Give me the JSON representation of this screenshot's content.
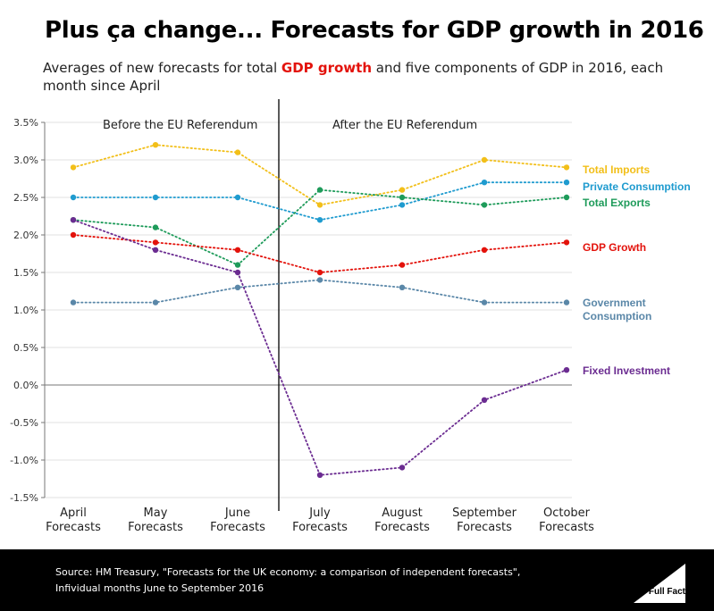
{
  "header": {
    "title": "Plus ça change... Forecasts for GDP growth in 2016",
    "subtitle_pre": "Averages of new forecasts for total ",
    "subtitle_highlight": "GDP growth",
    "subtitle_post": " and five components of GDP in 2016, each month since April"
  },
  "footer": {
    "source_line1": "Source: HM Treasury, \"Forecasts for the UK economy: a comparison of independent forecasts\",",
    "source_line2": "Infividual months June to September 2016",
    "logo_label": "Full Fact"
  },
  "chart_data": {
    "type": "line",
    "title": "Plus ça change... Forecasts for GDP growth in 2016",
    "xlabel": "",
    "ylabel": "",
    "ylim": [
      -1.5,
      3.5
    ],
    "y_ticks": [
      -1.5,
      -1.0,
      -0.5,
      0.0,
      0.5,
      1.0,
      1.5,
      2.0,
      2.5,
      3.0,
      3.5
    ],
    "y_tick_labels": [
      "-1.5%",
      "-1.0%",
      "-0.5%",
      "0.0%",
      "0.5%",
      "1.0%",
      "1.5%",
      "2.0%",
      "2.5%",
      "3.0%",
      "3.5%"
    ],
    "grid": true,
    "categories": [
      [
        "April",
        "Forecasts"
      ],
      [
        "May",
        "Forecasts"
      ],
      [
        "June",
        "Forecasts"
      ],
      [
        "July",
        "Forecasts"
      ],
      [
        "August",
        "Forecasts"
      ],
      [
        "September",
        "Forecasts"
      ],
      [
        "October",
        "Forecasts"
      ]
    ],
    "annotations": [
      {
        "text": "Before the EU Referendum",
        "region": "before"
      },
      {
        "text": "After the EU Referendum",
        "region": "after"
      }
    ],
    "divider_after_category_index": 2,
    "series": [
      {
        "name": "Total Imports",
        "color": "#f2bf19",
        "values": [
          2.9,
          3.2,
          3.1,
          2.4,
          2.6,
          3.0,
          2.9
        ],
        "label_lines": [
          "Total Imports"
        ]
      },
      {
        "name": "Private Consumption",
        "color": "#1f9bcf",
        "values": [
          2.5,
          2.5,
          2.5,
          2.2,
          2.4,
          2.7,
          2.7
        ],
        "label_lines": [
          "Private Consumption"
        ]
      },
      {
        "name": "Total Exports",
        "color": "#1e9b5a",
        "values": [
          2.2,
          2.1,
          1.6,
          2.6,
          2.5,
          2.4,
          2.5
        ],
        "label_lines": [
          "Total Exports"
        ]
      },
      {
        "name": "GDP Growth",
        "color": "#e3120b",
        "values": [
          2.0,
          1.9,
          1.8,
          1.5,
          1.6,
          1.8,
          1.9
        ],
        "label_lines": [
          "GDP Growth"
        ]
      },
      {
        "name": "Government Consumption",
        "color": "#5a87a8",
        "values": [
          1.1,
          1.1,
          1.3,
          1.4,
          1.3,
          1.1,
          1.1
        ],
        "label_lines": [
          "Government",
          "Consumption"
        ]
      },
      {
        "name": "Fixed Investment",
        "color": "#6b2c91",
        "values": [
          2.2,
          1.8,
          1.5,
          -1.2,
          -1.1,
          -0.2,
          0.2
        ],
        "label_lines": [
          "Fixed Investment"
        ]
      }
    ]
  }
}
